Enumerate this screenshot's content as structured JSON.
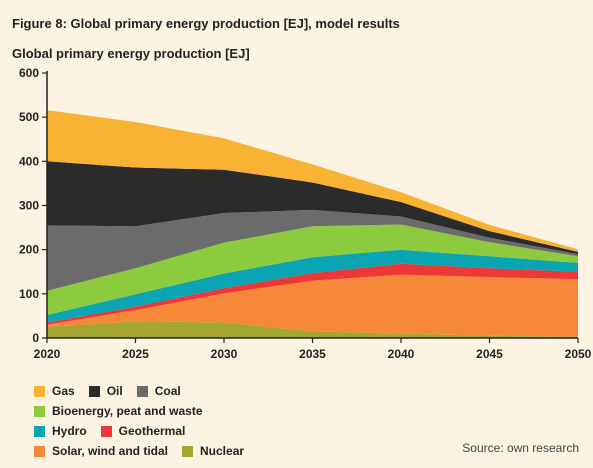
{
  "figure_title": "Figure 8: Global primary energy production [EJ], model results",
  "source": "Source: own research",
  "colors": {
    "nuclear": "#a5a532",
    "solar": "#f7883a",
    "geothermal": "#ee3737",
    "hydro": "#0aa5b3",
    "bio": "#8ccb3d",
    "coal": "#6b6b6b",
    "oil": "#2b2b2b",
    "gas": "#f8b334"
  },
  "legend": [
    [
      {
        "key": "gas",
        "label": "Gas"
      },
      {
        "key": "oil",
        "label": "Oil"
      },
      {
        "key": "coal",
        "label": "Coal"
      }
    ],
    [
      {
        "key": "bio",
        "label": "Bioenergy, peat and waste"
      }
    ],
    [
      {
        "key": "hydro",
        "label": "Hydro"
      },
      {
        "key": "geothermal",
        "label": "Geothermal"
      }
    ],
    [
      {
        "key": "solar",
        "label": "Solar, wind and tidal"
      },
      {
        "key": "nuclear",
        "label": "Nuclear"
      }
    ]
  ],
  "chart_data": {
    "type": "area",
    "title": "Global primary energy production [EJ]",
    "x": [
      2020,
      2025,
      2030,
      2035,
      2040,
      2045,
      2050
    ],
    "xlim": [
      2020,
      2050
    ],
    "ylim": [
      0,
      600
    ],
    "yticks": [
      0,
      100,
      200,
      300,
      400,
      500,
      600
    ],
    "grid": false,
    "stacked": true,
    "series": [
      {
        "name": "Nuclear",
        "key": "nuclear",
        "values": [
          25,
          38,
          35,
          15,
          10,
          5,
          3
        ]
      },
      {
        "name": "Solar, wind and tidal",
        "key": "solar",
        "values": [
          5,
          25,
          66,
          115,
          133,
          133,
          130
        ]
      },
      {
        "name": "Geothermal",
        "key": "geothermal",
        "values": [
          5,
          8,
          12,
          17,
          25,
          20,
          17
        ]
      },
      {
        "name": "Hydro",
        "key": "hydro",
        "values": [
          17,
          28,
          33,
          36,
          32,
          27,
          20
        ]
      },
      {
        "name": "Bioenergy, peat and waste",
        "key": "bio",
        "values": [
          55,
          59,
          70,
          70,
          57,
          32,
          15
        ]
      },
      {
        "name": "Coal",
        "key": "coal",
        "values": [
          148,
          95,
          67,
          37,
          18,
          10,
          5
        ]
      },
      {
        "name": "Oil",
        "key": "oil",
        "values": [
          145,
          133,
          98,
          62,
          33,
          15,
          5
        ]
      },
      {
        "name": "Gas",
        "key": "gas",
        "values": [
          116,
          103,
          71,
          41,
          22,
          14,
          6
        ]
      }
    ]
  }
}
